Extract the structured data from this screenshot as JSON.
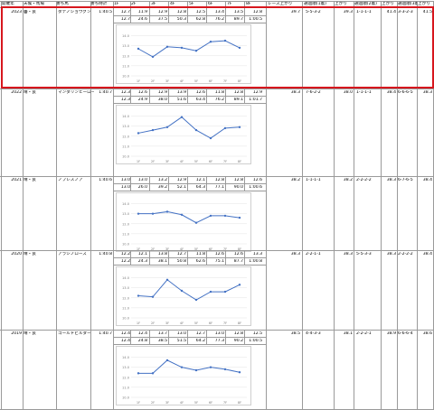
{
  "headers": {
    "year": "開催年",
    "weather_track": "天候・馬場",
    "winner": "勝ち馬",
    "winning_time": "勝ち時計",
    "furlongs": [
      "1F",
      "2F",
      "3F",
      "4F",
      "5F",
      "6F",
      "7F",
      "8F"
    ],
    "race_last3f": "レース上がり",
    "pos1": "通過順(1着)",
    "last3f_1": "上がり",
    "pos2": "通過順(2着)",
    "last3f_2": "上がり",
    "pos3": "通過順(3着)",
    "last3f_3": "上がり"
  },
  "rows": [
    {
      "year": "2023",
      "weather_track": "曇・良",
      "winner": "ダテノショウグン",
      "winning_time": "1:40.5",
      "laps": [
        "12.7",
        "11.9",
        "12.9",
        "12.8",
        "12.5",
        "13.4",
        "13.5",
        "12.8"
      ],
      "cumulative": [
        "12.7",
        "24.6",
        "37.5",
        "50.3",
        "62.8",
        "76.2",
        "89.7",
        "1:00.5"
      ],
      "race_last3f": "39.7",
      "pos1": "5-5-3-2",
      "last3f_1": "39.3",
      "pos2": "1-1-1-1",
      "last3f_2": "",
      "pos3": "",
      "last3f_3": "41.4",
      "pos3b": "3-3-2-3",
      "last3f_3b": "41.5",
      "highlight": true
    },
    {
      "year": "2022",
      "weather_track": "晴・良",
      "winner": "マンダリンヒーロー",
      "winning_time": "1:40.7",
      "laps": [
        "12.3",
        "12.6",
        "12.9",
        "13.9",
        "12.6",
        "11.8",
        "12.8",
        "12.9"
      ],
      "cumulative": [
        "12.3",
        "24.9",
        "38.0",
        "51.6",
        "63.4",
        "76.2",
        "89.1",
        "1:01.7"
      ],
      "race_last3f": "38.3",
      "pos1": "7-6-2-2",
      "last3f_1": "38.0",
      "pos2": "1-1-1-1",
      "last3f_2": "",
      "pos3": "",
      "last3f_3": "38.4",
      "pos3b": "6-6-6-5",
      "last3f_3b": "38.3",
      "highlight": false
    },
    {
      "year": "2021",
      "weather_track": "晴・良",
      "winner": "ノブレスノア",
      "winning_time": "1:40.6",
      "laps": [
        "13.0",
        "13.0",
        "13.2",
        "12.9",
        "12.1",
        "12.8",
        "12.8",
        "12.6"
      ],
      "cumulative": [
        "13.0",
        "26.0",
        "39.2",
        "52.1",
        "64.3",
        "77.1",
        "90.0",
        "1:00.6"
      ],
      "race_last3f": "38.2",
      "pos1": "1-1-1-1",
      "last3f_1": "38.2",
      "pos2": "2-2-2-2",
      "last3f_2": "",
      "pos3": "",
      "last3f_3": "38.3",
      "pos3b": "6-7-6-5",
      "last3f_3b": "38.4",
      "highlight": false
    },
    {
      "year": "2020",
      "weather_track": "晴・良",
      "winner": "アラシノローズ",
      "winning_time": "1:40.8",
      "laps": [
        "12.2",
        "12.1",
        "13.8",
        "12.7",
        "11.8",
        "12.6",
        "12.6",
        "13.3"
      ],
      "cumulative": [
        "12.2",
        "24.3",
        "38.1",
        "50.8",
        "62.6",
        "75.1",
        "87.7",
        "1:00.8"
      ],
      "race_last3f": "38.3",
      "pos1": "2-2-1-1",
      "last3f_1": "38.3",
      "pos2": "5-5-3-3",
      "last3f_2": "",
      "pos3": "",
      "last3f_3": "38.3",
      "pos3b": "2-2-2-2",
      "last3f_3b": "38.4",
      "highlight": false
    },
    {
      "year": "2019",
      "weather_track": "晴・良",
      "winner": "ゴールドビルダー",
      "winning_time": "1:40.7",
      "laps": [
        "12.4",
        "12.4",
        "13.7",
        "13.0",
        "12.7",
        "13.0",
        "12.8",
        "12.5"
      ],
      "cumulative": [
        "12.4",
        "24.8",
        "38.5",
        "51.5",
        "64.2",
        "77.3",
        "90.2",
        "1:00.5"
      ],
      "race_last3f": "38.5",
      "pos1": "4-4-3-3",
      "last3f_1": "38.1",
      "pos2": "2-2-2-1",
      "last3f_2": "",
      "pos3": "",
      "last3f_3": "38.9",
      "pos3b": "6-6-6-4",
      "last3f_3b": "38.6",
      "highlight": false
    }
  ],
  "chart_data": {
    "type": "line",
    "x": [
      "1F",
      "2F",
      "3F",
      "4F",
      "5F",
      "6F",
      "7F",
      "8F"
    ],
    "y_ticks": [
      "10.0",
      "11.0",
      "12.0",
      "13.0",
      "14.0"
    ],
    "ylim": [
      10.0,
      14.5
    ],
    "series_color": "#4472c4",
    "charts": [
      {
        "year": "2023",
        "values": [
          12.7,
          11.9,
          12.9,
          12.8,
          12.5,
          13.4,
          13.5,
          12.8
        ]
      },
      {
        "year": "2022",
        "values": [
          12.3,
          12.6,
          12.9,
          13.9,
          12.6,
          11.8,
          12.8,
          12.9
        ]
      },
      {
        "year": "2021",
        "values": [
          13.0,
          13.0,
          13.2,
          12.9,
          12.1,
          12.8,
          12.8,
          12.6
        ]
      },
      {
        "year": "2020",
        "values": [
          12.2,
          12.1,
          13.8,
          12.7,
          11.8,
          12.6,
          12.6,
          13.3
        ]
      },
      {
        "year": "2019",
        "values": [
          12.4,
          12.4,
          13.7,
          13.0,
          12.7,
          13.0,
          12.8,
          12.5
        ]
      }
    ]
  }
}
